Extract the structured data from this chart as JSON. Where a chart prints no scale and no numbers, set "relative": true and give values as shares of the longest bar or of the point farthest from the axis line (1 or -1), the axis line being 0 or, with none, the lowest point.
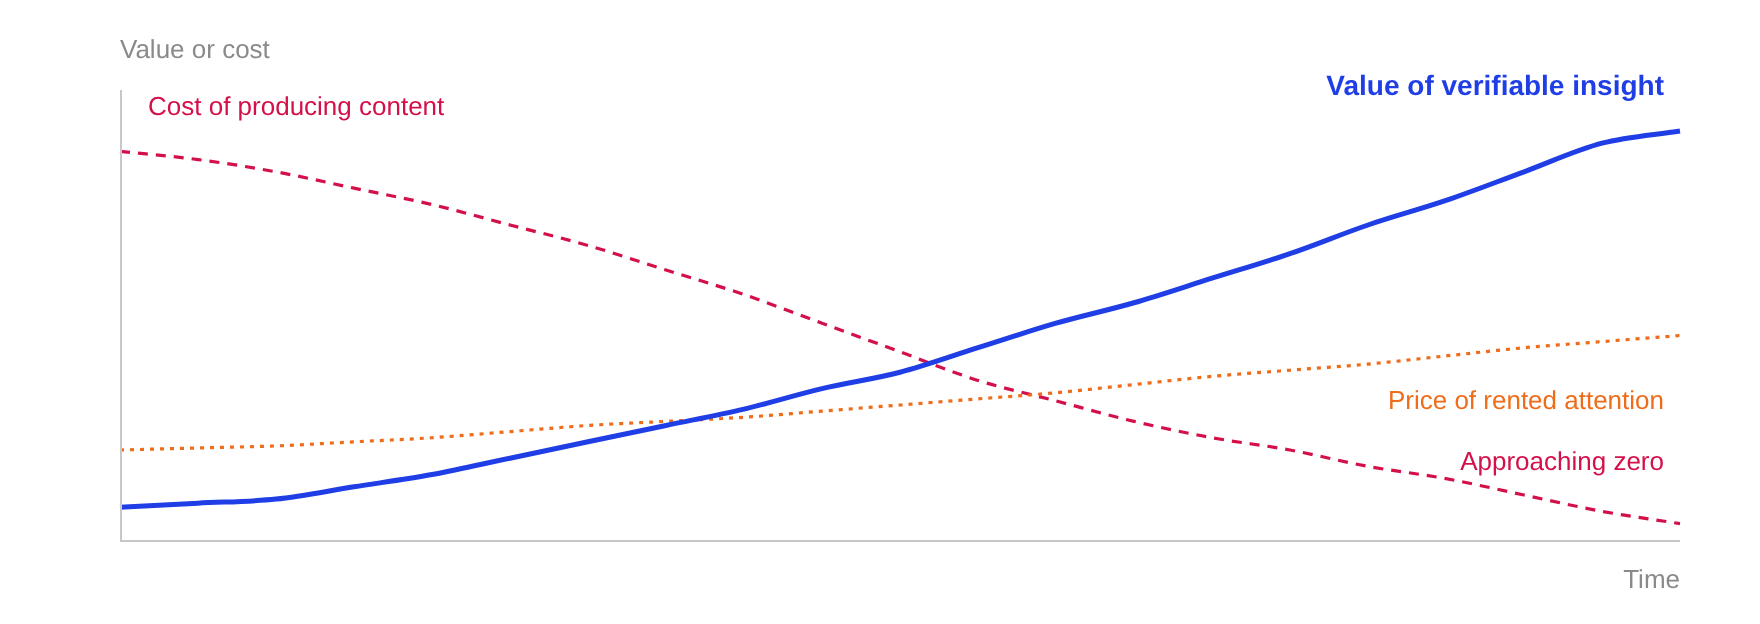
{
  "chart_data": {
    "type": "line",
    "relative": true,
    "ylabel": "Value or cost",
    "xlabel": "Time",
    "legend": false,
    "marker": "none",
    "categories": [
      null,
      null,
      null,
      null,
      null,
      null,
      null,
      null,
      null,
      null,
      null,
      null,
      null,
      null,
      null,
      null,
      null,
      null,
      null,
      null,
      null
    ],
    "series": [
      {
        "name": "Value of verifiable insight",
        "color": "#1f3ee6",
        "line_style": "solid",
        "values": [
          0.08,
          0.09,
          0.1,
          0.13,
          0.16,
          0.2,
          0.24,
          0.28,
          0.32,
          0.37,
          0.41,
          0.47,
          0.53,
          0.58,
          0.64,
          0.7,
          0.77,
          0.83,
          0.9,
          0.97,
          1
        ]
      },
      {
        "name": "Price of rented attention",
        "color": "#ef6c1a",
        "line_style": "dotted",
        "values": [
          0.22,
          0.225,
          0.23,
          0.24,
          0.25,
          0.265,
          0.28,
          0.29,
          0.3,
          0.315,
          0.33,
          0.345,
          0.36,
          0.38,
          0.4,
          0.415,
          0.43,
          0.45,
          0.47,
          0.485,
          0.5
        ]
      },
      {
        "name": "Cost of producing content",
        "color": "#d4104a",
        "line_style": "dashed",
        "values": [
          0.95,
          0.93,
          0.9,
          0.86,
          0.82,
          0.77,
          0.72,
          0.66,
          0.6,
          0.53,
          0.46,
          0.39,
          0.34,
          0.29,
          0.25,
          0.22,
          0.18,
          0.15,
          0.11,
          0.07,
          0.04
        ]
      }
    ],
    "annotations": [
      "Approaching zero"
    ]
  }
}
